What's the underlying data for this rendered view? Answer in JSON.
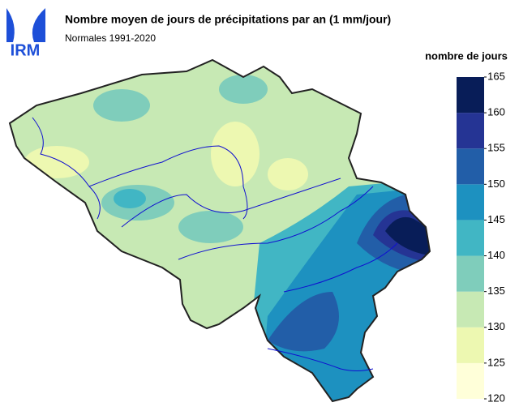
{
  "header": {
    "logo": "IRM",
    "title": "Nombre moyen de jours de précipitations par an (1 mm/jour)",
    "subtitle": "Normales 1991-2020"
  },
  "legend": {
    "title": "nombre de jours",
    "ticks": [
      120,
      125,
      130,
      135,
      140,
      145,
      150,
      155,
      160,
      165
    ],
    "colors": [
      "#ffffd9",
      "#edf8b1",
      "#c7e9b4",
      "#7fcdbb",
      "#41b6c4",
      "#1d91c0",
      "#225ea8",
      "#253494",
      "#081d58"
    ]
  }
}
